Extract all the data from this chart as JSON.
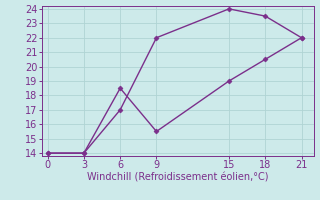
{
  "line1_x": [
    0,
    3,
    6,
    9,
    15,
    18,
    21
  ],
  "line1_y": [
    14,
    14,
    17,
    22,
    24,
    23.5,
    22
  ],
  "line2_x": [
    0,
    3,
    6,
    9,
    15,
    18,
    21
  ],
  "line2_y": [
    14,
    14,
    18.5,
    15.5,
    19,
    20.5,
    22
  ],
  "color": "#7b2f8b",
  "marker": "D",
  "markersize": 2.5,
  "linewidth": 1.0,
  "xlabel": "Windchill (Refroidissement éolien,°C)",
  "xlim": [
    -0.5,
    22
  ],
  "ylim": [
    13.8,
    24.2
  ],
  "xticks": [
    0,
    3,
    6,
    9,
    15,
    18,
    21
  ],
  "yticks": [
    14,
    15,
    16,
    17,
    18,
    19,
    20,
    21,
    22,
    23,
    24
  ],
  "bg_color": "#cdeaea",
  "grid_color": "#b0d4d4",
  "xlabel_fontsize": 7,
  "tick_fontsize": 7
}
